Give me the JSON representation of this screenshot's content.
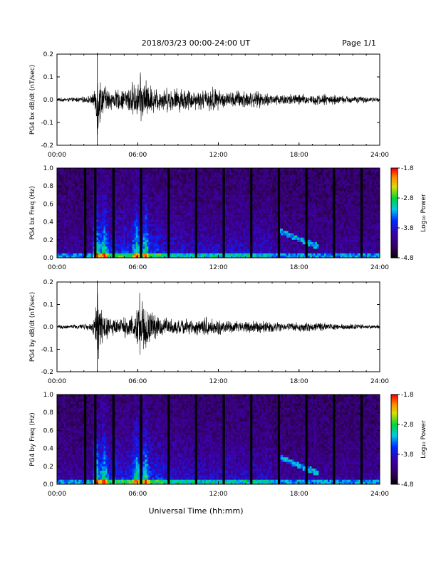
{
  "header": {
    "date_title": "2018/03/23  00:00-24:00 UT",
    "page_label": "Page 1/1"
  },
  "footer": {
    "xlabel": "Universal Time (hh:mm)"
  },
  "chart_data": [
    {
      "type": "line",
      "ylabel": "PG4 bx dB/dt (nT/sec)",
      "xticks": [
        "00:00",
        "06:00",
        "12:00",
        "18:00",
        "24:00"
      ],
      "xlim": [
        0,
        24
      ],
      "ylim": [
        -0.2,
        0.2
      ],
      "yticks": [
        "0.2",
        "0.1",
        "0.0",
        "-0.1",
        "-0.2"
      ],
      "series": [
        {
          "x": [
            0,
            1,
            2,
            2.5,
            2.8,
            3.0,
            3.3,
            3.6,
            4.0,
            4.5,
            5.0,
            5.5,
            5.9,
            6.1,
            6.3,
            6.6,
            7.0,
            7.5,
            8.0,
            8.5,
            9.0,
            9.5,
            10.0,
            10.5,
            11.0,
            11.5,
            12.0,
            12.5,
            13.0,
            13.5,
            14.0,
            14.5,
            15.0,
            16.0,
            17.0,
            18.0,
            19.0,
            20.0,
            21.0,
            22.0,
            23.0,
            24.0
          ],
          "envelope": [
            0.01,
            0.01,
            0.015,
            0.02,
            0.04,
            0.2,
            0.08,
            0.07,
            0.05,
            0.05,
            0.05,
            0.09,
            0.07,
            0.13,
            0.12,
            0.1,
            0.07,
            0.06,
            0.06,
            0.06,
            0.06,
            0.06,
            0.05,
            0.05,
            0.05,
            0.07,
            0.05,
            0.04,
            0.04,
            0.05,
            0.05,
            0.04,
            0.04,
            0.03,
            0.03,
            0.03,
            0.025,
            0.03,
            0.02,
            0.02,
            0.015,
            0.01
          ]
        }
      ]
    },
    {
      "type": "heatmap",
      "ylabel": "PG4 bx Freq (Hz)",
      "xticks": [
        "00:00",
        "06:00",
        "12:00",
        "18:00",
        "24:00"
      ],
      "xlim": [
        0,
        24
      ],
      "ylim": [
        0,
        1.0
      ],
      "yticks": [
        "1.0",
        "0.8",
        "0.6",
        "0.4",
        "0.2",
        "0.0"
      ],
      "colorbar": {
        "label": "Log₁₀ Power",
        "ticks": [
          "-1.8",
          "-2.8",
          "-3.8",
          "-4.8"
        ],
        "range": [
          -4.8,
          -1.8
        ]
      },
      "gaps_hours": [
        2.1,
        2.85,
        4.2,
        6.25,
        8.3,
        10.35,
        12.4,
        14.45,
        16.5,
        18.55,
        20.6,
        22.65
      ],
      "burst_hours": [
        2.95,
        3.5,
        5.9,
        6.6
      ],
      "tone": {
        "start_hour": 16.5,
        "end_hour": 19.5,
        "freq_start": 0.3,
        "freq_end": 0.12
      }
    },
    {
      "type": "line",
      "ylabel": "PG4 by dB/dt (nT/sec)",
      "xticks": [
        "00:00",
        "06:00",
        "12:00",
        "18:00",
        "24:00"
      ],
      "xlim": [
        0,
        24
      ],
      "ylim": [
        -0.2,
        0.2
      ],
      "yticks": [
        "0.2",
        "0.1",
        "0.0",
        "-0.1",
        "-0.2"
      ],
      "series": [
        {
          "x": [
            0,
            1,
            2,
            2.5,
            2.8,
            3.0,
            3.3,
            3.6,
            4.0,
            4.5,
            5.0,
            5.5,
            5.9,
            6.1,
            6.3,
            6.6,
            7.0,
            7.5,
            8.0,
            8.5,
            9.0,
            9.5,
            10.0,
            10.5,
            11.0,
            11.5,
            12.0,
            12.5,
            13.0,
            13.5,
            14.0,
            14.5,
            15.0,
            16.0,
            17.0,
            18.0,
            19.0,
            20.0,
            21.0,
            22.0,
            23.0,
            24.0
          ],
          "envelope": [
            0.01,
            0.01,
            0.015,
            0.02,
            0.05,
            0.19,
            0.09,
            0.08,
            0.05,
            0.04,
            0.05,
            0.06,
            0.1,
            0.18,
            0.14,
            0.12,
            0.08,
            0.05,
            0.05,
            0.04,
            0.04,
            0.04,
            0.04,
            0.04,
            0.05,
            0.05,
            0.04,
            0.03,
            0.03,
            0.03,
            0.03,
            0.03,
            0.03,
            0.03,
            0.02,
            0.025,
            0.02,
            0.02,
            0.015,
            0.015,
            0.01,
            0.01
          ]
        }
      ]
    },
    {
      "type": "heatmap",
      "ylabel": "PG4 by Freq (Hz)",
      "xticks": [
        "00:00",
        "06:00",
        "12:00",
        "18:00",
        "24:00"
      ],
      "xlim": [
        0,
        24
      ],
      "ylim": [
        0,
        1.0
      ],
      "yticks": [
        "1.0",
        "0.8",
        "0.6",
        "0.4",
        "0.2",
        "0.0"
      ],
      "colorbar": {
        "label": "Log₁₀ Power",
        "ticks": [
          "-1.8",
          "-2.8",
          "-3.8",
          "-4.8"
        ],
        "range": [
          -4.8,
          -1.8
        ]
      },
      "gaps_hours": [
        2.1,
        2.85,
        4.2,
        6.25,
        8.3,
        10.35,
        12.4,
        14.45,
        16.5,
        18.55,
        20.6,
        22.65
      ],
      "burst_hours": [
        2.95,
        3.5,
        5.9,
        6.6
      ],
      "tone": {
        "start_hour": 16.5,
        "end_hour": 19.5,
        "freq_start": 0.3,
        "freq_end": 0.12
      }
    }
  ]
}
